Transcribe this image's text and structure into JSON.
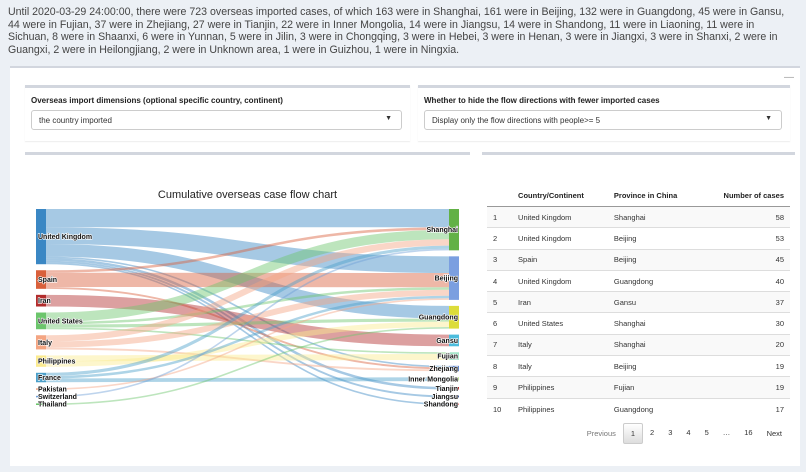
{
  "summary": "Until 2020-03-29 24:00:00, there were 723 overseas imported cases, of which 163 were in Shanghai,  161 were in Beijing,  132 were in Guangdong,  45 were in Gansu,  44 were in Fujian,  37 were in Zhejiang,  27 were in Tianjin,  22 were in Inner Mongolia,  14 were in Jiangsu,  14 were in Shandong,  11 were in Liaoning,  11 were in Sichuan,  8 were in Shaanxi,  6 were in Yunnan,  5 were in Jilin,  3 were in Chongqing,  3 were in Hebei,  3 were in Henan,  3 were in Jiangxi,  3 were in Shanxi,  2 were in Guangxi,  2 were in Heilongjiang,  2 were in Unknown area,  1 were in Guizhou,  1 were in Ningxia.",
  "collapse": "—",
  "filters": {
    "dim_label": "Overseas import dimensions (optional specific country, continent)",
    "dim_value": "the country imported",
    "hide_label": "Whether to hide the flow directions with fewer imported cases",
    "hide_value": "Display only the flow directions with people>= 5"
  },
  "chart_data": {
    "type": "sankey",
    "title": "Cumulative overseas case flow chart",
    "sources": [
      {
        "name": "United Kingdom",
        "color": "#3a87c4"
      },
      {
        "name": "Spain",
        "color": "#d9603b"
      },
      {
        "name": "Iran",
        "color": "#b22c2c"
      },
      {
        "name": "United States",
        "color": "#6cc56c"
      },
      {
        "name": "Italy",
        "color": "#f4a582"
      },
      {
        "name": "Philippines",
        "color": "#fbea8e"
      },
      {
        "name": "France",
        "color": "#4b9fc9"
      },
      {
        "name": "Pakistan",
        "color": "#f4a582"
      },
      {
        "name": "Switzerland",
        "color": "#6f9fd8"
      },
      {
        "name": "Thailand",
        "color": "#6cc56c"
      }
    ],
    "targets": [
      {
        "name": "Shanghai",
        "color": "#62b146"
      },
      {
        "name": "Beijing",
        "color": "#7b9fe0"
      },
      {
        "name": "Guangdong",
        "color": "#dcdc3a"
      },
      {
        "name": "Gansu",
        "color": "#4cbcdc"
      },
      {
        "name": "Fujian",
        "color": "#9fe5c7"
      },
      {
        "name": "Zhejiang",
        "color": "#4572c4"
      },
      {
        "name": "Inner Mongolia",
        "color": "#b8e08c"
      },
      {
        "name": "Tianjin",
        "color": "#b01c1c"
      },
      {
        "name": "Jiangsu",
        "color": "#1c3c8c"
      },
      {
        "name": "Shandong",
        "color": "#f08080"
      }
    ],
    "links": [
      [
        "United Kingdom",
        "Shanghai",
        58
      ],
      [
        "United Kingdom",
        "Beijing",
        53
      ],
      [
        "United Kingdom",
        "Guangdong",
        40
      ],
      [
        "United Kingdom",
        "Zhejiang",
        5
      ],
      [
        "United Kingdom",
        "Tianjin",
        8
      ],
      [
        "United Kingdom",
        "Jiangsu",
        6
      ],
      [
        "United Kingdom",
        "Shandong",
        5
      ],
      [
        "Spain",
        "Shanghai",
        8
      ],
      [
        "Spain",
        "Beijing",
        45
      ],
      [
        "Spain",
        "Zhejiang",
        6
      ],
      [
        "Iran",
        "Gansu",
        37
      ],
      [
        "United States",
        "Shanghai",
        30
      ],
      [
        "United States",
        "Beijing",
        8
      ],
      [
        "United States",
        "Guangdong",
        10
      ],
      [
        "United States",
        "Fujian",
        5
      ],
      [
        "Italy",
        "Shanghai",
        20
      ],
      [
        "Italy",
        "Beijing",
        19
      ],
      [
        "Italy",
        "Zhejiang",
        6
      ],
      [
        "Philippines",
        "Fujian",
        19
      ],
      [
        "Philippines",
        "Guangdong",
        17
      ],
      [
        "France",
        "Shanghai",
        10
      ],
      [
        "France",
        "Beijing",
        8
      ],
      [
        "France",
        "Inner Mongolia",
        12
      ],
      [
        "Pakistan",
        "Beijing",
        5
      ],
      [
        "Switzerland",
        "Shanghai",
        5
      ],
      [
        "Thailand",
        "Guangdong",
        5
      ]
    ]
  },
  "table": {
    "headers": [
      "",
      "Country/Continent",
      "Province in China",
      "Number of cases"
    ],
    "rows": [
      [
        "1",
        "United Kingdom",
        "Shanghai",
        "58"
      ],
      [
        "2",
        "United Kingdom",
        "Beijing",
        "53"
      ],
      [
        "3",
        "Spain",
        "Beijing",
        "45"
      ],
      [
        "4",
        "United Kingdom",
        "Guangdong",
        "40"
      ],
      [
        "5",
        "Iran",
        "Gansu",
        "37"
      ],
      [
        "6",
        "United States",
        "Shanghai",
        "30"
      ],
      [
        "7",
        "Italy",
        "Shanghai",
        "20"
      ],
      [
        "8",
        "Italy",
        "Beijing",
        "19"
      ],
      [
        "9",
        "Philippines",
        "Fujian",
        "19"
      ],
      [
        "10",
        "Philippines",
        "Guangdong",
        "17"
      ]
    ]
  },
  "pager": {
    "previous": "Previous",
    "pages": [
      "1",
      "2",
      "3",
      "4",
      "5",
      "…",
      "16"
    ],
    "next": "Next"
  }
}
